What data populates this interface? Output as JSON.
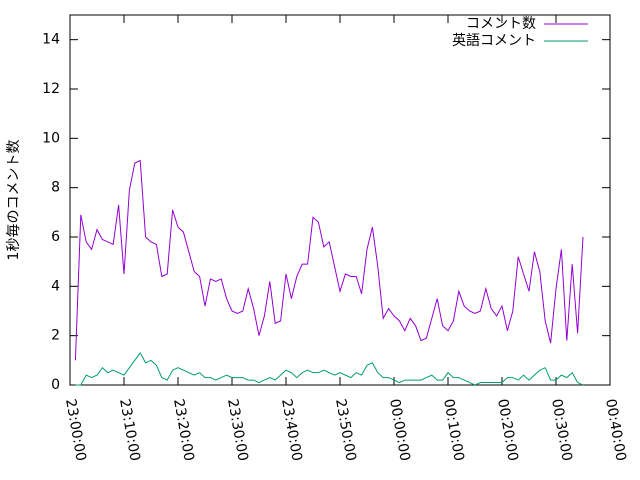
{
  "chart_data": {
    "type": "line",
    "ylabel": "1秒毎のコメント数",
    "x": [
      "23:01:00",
      "23:02:00",
      "23:03:00",
      "23:04:00",
      "23:05:00",
      "23:06:00",
      "23:07:00",
      "23:08:00",
      "23:09:00",
      "23:10:00",
      "23:11:00",
      "23:12:00",
      "23:13:00",
      "23:14:00",
      "23:15:00",
      "23:16:00",
      "23:17:00",
      "23:18:00",
      "23:19:00",
      "23:20:00",
      "23:21:00",
      "23:22:00",
      "23:23:00",
      "23:24:00",
      "23:25:00",
      "23:26:00",
      "23:27:00",
      "23:28:00",
      "23:29:00",
      "23:30:00",
      "23:31:00",
      "23:32:00",
      "23:33:00",
      "23:34:00",
      "23:35:00",
      "23:36:00",
      "23:37:00",
      "23:38:00",
      "23:39:00",
      "23:40:00",
      "23:41:00",
      "23:42:00",
      "23:43:00",
      "23:44:00",
      "23:45:00",
      "23:46:00",
      "23:47:00",
      "23:48:00",
      "23:49:00",
      "23:50:00",
      "23:51:00",
      "23:52:00",
      "23:53:00",
      "23:54:00",
      "23:55:00",
      "23:56:00",
      "23:57:00",
      "23:58:00",
      "23:59:00",
      "00:00:00",
      "00:01:00",
      "00:02:00",
      "00:03:00",
      "00:04:00",
      "00:05:00",
      "00:06:00",
      "00:07:00",
      "00:08:00",
      "00:09:00",
      "00:10:00",
      "00:11:00",
      "00:12:00",
      "00:13:00",
      "00:14:00",
      "00:15:00",
      "00:16:00",
      "00:17:00",
      "00:18:00",
      "00:19:00",
      "00:20:00",
      "00:21:00",
      "00:22:00",
      "00:23:00",
      "00:24:00",
      "00:25:00",
      "00:26:00",
      "00:27:00",
      "00:28:00",
      "00:29:00",
      "00:30:00",
      "00:31:00",
      "00:32:00",
      "00:33:00",
      "00:34:00",
      "00:35:00"
    ],
    "series": [
      {
        "name": "コメント数",
        "color": "#9400d3",
        "values": [
          1.0,
          6.9,
          5.8,
          5.5,
          6.3,
          5.9,
          5.8,
          5.7,
          7.3,
          4.5,
          7.9,
          9.0,
          9.1,
          6.0,
          5.8,
          5.7,
          4.4,
          4.5,
          7.1,
          6.4,
          6.2,
          5.4,
          4.6,
          4.4,
          3.2,
          4.3,
          4.2,
          4.3,
          3.5,
          3.0,
          2.9,
          3.0,
          3.9,
          3.1,
          2.0,
          2.8,
          4.2,
          2.5,
          2.6,
          4.5,
          3.5,
          4.4,
          4.9,
          4.9,
          6.8,
          6.6,
          5.6,
          5.8,
          4.8,
          3.8,
          4.5,
          4.4,
          4.4,
          3.7,
          5.5,
          6.4,
          4.8,
          2.7,
          3.1,
          2.8,
          2.6,
          2.2,
          2.7,
          2.4,
          1.8,
          1.9,
          2.7,
          3.5,
          2.4,
          2.2,
          2.6,
          3.8,
          3.2,
          3.0,
          2.9,
          3.0,
          3.9,
          3.1,
          2.8,
          3.2,
          2.2,
          3.0,
          5.2,
          4.5,
          3.8,
          5.4,
          4.6,
          2.6,
          1.7,
          3.9,
          5.5,
          1.8,
          4.9,
          2.1,
          6.0
        ]
      },
      {
        "name": "英語コメント",
        "color": "#009e73",
        "values": [
          0.0,
          0.0,
          0.4,
          0.3,
          0.4,
          0.7,
          0.5,
          0.6,
          0.5,
          0.4,
          0.7,
          1.0,
          1.3,
          0.9,
          1.0,
          0.8,
          0.3,
          0.2,
          0.6,
          0.7,
          0.6,
          0.5,
          0.4,
          0.5,
          0.3,
          0.3,
          0.2,
          0.3,
          0.4,
          0.3,
          0.3,
          0.3,
          0.2,
          0.2,
          0.1,
          0.2,
          0.3,
          0.2,
          0.4,
          0.6,
          0.5,
          0.3,
          0.5,
          0.6,
          0.5,
          0.5,
          0.6,
          0.5,
          0.4,
          0.5,
          0.4,
          0.3,
          0.5,
          0.4,
          0.8,
          0.9,
          0.5,
          0.3,
          0.3,
          0.2,
          0.1,
          0.2,
          0.2,
          0.2,
          0.2,
          0.3,
          0.4,
          0.2,
          0.2,
          0.5,
          0.3,
          0.3,
          0.2,
          0.1,
          0.0,
          0.1,
          0.1,
          0.1,
          0.1,
          0.1,
          0.3,
          0.3,
          0.2,
          0.4,
          0.2,
          0.4,
          0.6,
          0.7,
          0.2,
          0.2,
          0.4,
          0.3,
          0.5,
          0.1,
          0.0
        ]
      }
    ],
    "xlim": [
      "23:00:00",
      "00:40:00"
    ],
    "xticks": [
      "23:00:00",
      "23:10:00",
      "23:20:00",
      "23:30:00",
      "23:40:00",
      "23:50:00",
      "00:00:00",
      "00:10:00",
      "00:20:00",
      "00:30:00",
      "00:40:00"
    ],
    "ylim": [
      0,
      15
    ],
    "yticks": [
      0,
      2,
      4,
      6,
      8,
      10,
      12,
      14
    ],
    "legend": "top-right"
  }
}
